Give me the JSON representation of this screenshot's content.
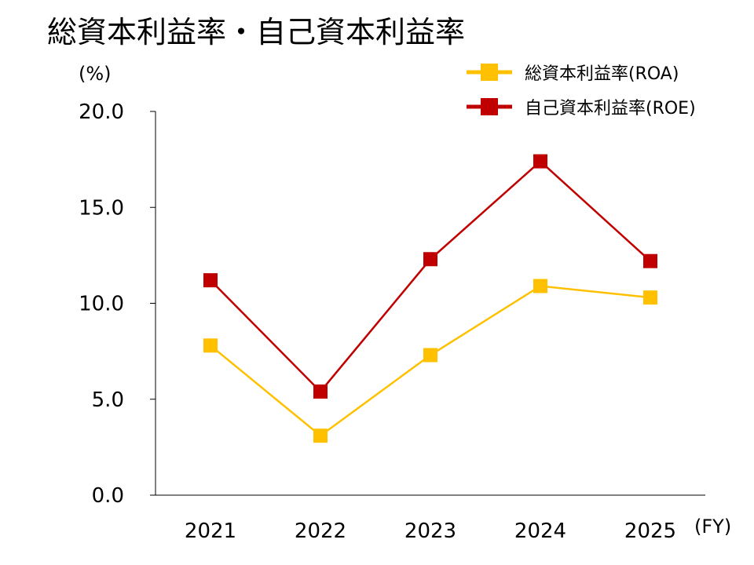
{
  "chart_data": {
    "type": "line",
    "title": "総資本利益率・自己資本利益率",
    "ylabel": "(%)",
    "xlabel": "(FY)",
    "categories": [
      "2021",
      "2022",
      "2023",
      "2024",
      "2025"
    ],
    "ylim": [
      0,
      20
    ],
    "yticks": [
      "0.0",
      "5.0",
      "10.0",
      "15.0",
      "20.0"
    ],
    "grid": false,
    "legend_position": "top-right",
    "series": [
      {
        "name": "総資本利益率(ROA)",
        "color": "#FFC000",
        "values": [
          7.8,
          3.1,
          7.3,
          10.9,
          10.3
        ]
      },
      {
        "name": "自己資本利益率(ROE)",
        "color": "#C00000",
        "values": [
          11.2,
          5.4,
          12.3,
          17.4,
          12.2
        ]
      }
    ]
  }
}
